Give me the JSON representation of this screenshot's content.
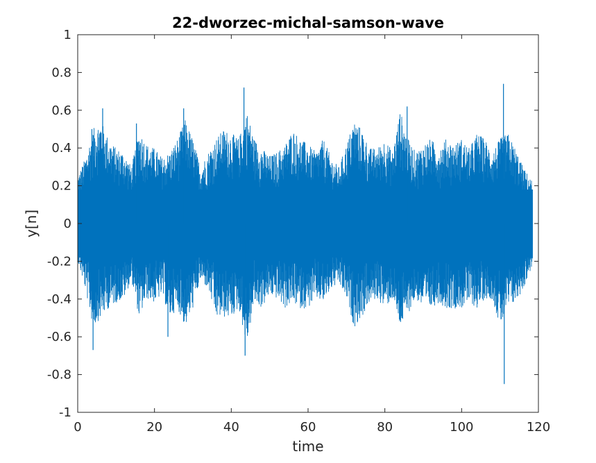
{
  "chart_data": {
    "type": "line",
    "title": "22-dworzec-michal-samson-wave",
    "xlabel": "time",
    "ylabel": "y[n]",
    "xlim": [
      0,
      120
    ],
    "ylim": [
      -1,
      1
    ],
    "data_end_x": 118.5,
    "xticks": [
      0,
      20,
      40,
      60,
      80,
      100,
      120
    ],
    "xtick_labels": [
      "0",
      "20",
      "40",
      "60",
      "80",
      "100",
      "120"
    ],
    "yticks": [
      -1,
      -0.8,
      -0.6,
      -0.4,
      -0.2,
      0,
      0.2,
      0.4,
      0.6,
      0.8,
      1
    ],
    "ytick_labels": [
      "-1",
      "-0.8",
      "-0.6",
      "-0.4",
      "-0.2",
      "0",
      "0.2",
      "0.4",
      "0.6",
      "0.8",
      "1"
    ],
    "grid": false,
    "legend": "none",
    "series": [
      {
        "color": "#0072BD",
        "dense_band": [
          -0.2,
          0.2
        ],
        "envelope_x": [
          0,
          2,
          4,
          6,
          8,
          10,
          12,
          14,
          16,
          18,
          20,
          22,
          24,
          26,
          28,
          30,
          32,
          34,
          36,
          38,
          40,
          42,
          44,
          46,
          48,
          50,
          52,
          54,
          56,
          58,
          60,
          62,
          64,
          66,
          68,
          70,
          72,
          74,
          76,
          78,
          80,
          82,
          84,
          86,
          88,
          90,
          92,
          94,
          96,
          98,
          100,
          102,
          104,
          106,
          108,
          110,
          112,
          114,
          116,
          118.5
        ],
        "envelope_max": [
          0.25,
          0.35,
          0.5,
          0.55,
          0.45,
          0.4,
          0.38,
          0.3,
          0.5,
          0.42,
          0.4,
          0.35,
          0.38,
          0.45,
          0.55,
          0.45,
          0.3,
          0.38,
          0.45,
          0.5,
          0.48,
          0.45,
          0.6,
          0.45,
          0.4,
          0.36,
          0.38,
          0.42,
          0.5,
          0.45,
          0.42,
          0.38,
          0.45,
          0.35,
          0.3,
          0.42,
          0.55,
          0.5,
          0.4,
          0.4,
          0.45,
          0.38,
          0.6,
          0.45,
          0.38,
          0.42,
          0.45,
          0.4,
          0.45,
          0.42,
          0.45,
          0.4,
          0.48,
          0.45,
          0.38,
          0.45,
          0.48,
          0.4,
          0.3,
          0.22
        ],
        "envelope_min": [
          -0.2,
          -0.35,
          -0.55,
          -0.5,
          -0.45,
          -0.42,
          -0.4,
          -0.3,
          -0.5,
          -0.4,
          -0.42,
          -0.38,
          -0.5,
          -0.45,
          -0.55,
          -0.45,
          -0.3,
          -0.35,
          -0.5,
          -0.5,
          -0.5,
          -0.45,
          -0.65,
          -0.42,
          -0.45,
          -0.38,
          -0.4,
          -0.45,
          -0.42,
          -0.45,
          -0.45,
          -0.4,
          -0.42,
          -0.35,
          -0.32,
          -0.4,
          -0.55,
          -0.5,
          -0.42,
          -0.4,
          -0.45,
          -0.4,
          -0.55,
          -0.48,
          -0.4,
          -0.45,
          -0.45,
          -0.42,
          -0.45,
          -0.45,
          -0.45,
          -0.42,
          -0.45,
          -0.4,
          -0.4,
          -0.55,
          -0.45,
          -0.42,
          -0.35,
          -0.22
        ],
        "peaks": [
          {
            "x": 3.7,
            "y": 0.5
          },
          {
            "x": 4.0,
            "y": -0.67
          },
          {
            "x": 6.5,
            "y": 0.61
          },
          {
            "x": 15.3,
            "y": 0.53
          },
          {
            "x": 23.5,
            "y": -0.6
          },
          {
            "x": 27.6,
            "y": 0.61
          },
          {
            "x": 43.3,
            "y": 0.72
          },
          {
            "x": 43.6,
            "y": -0.7
          },
          {
            "x": 85.8,
            "y": 0.62
          },
          {
            "x": 110.9,
            "y": 0.74
          },
          {
            "x": 111.1,
            "y": -0.85
          }
        ]
      }
    ]
  }
}
